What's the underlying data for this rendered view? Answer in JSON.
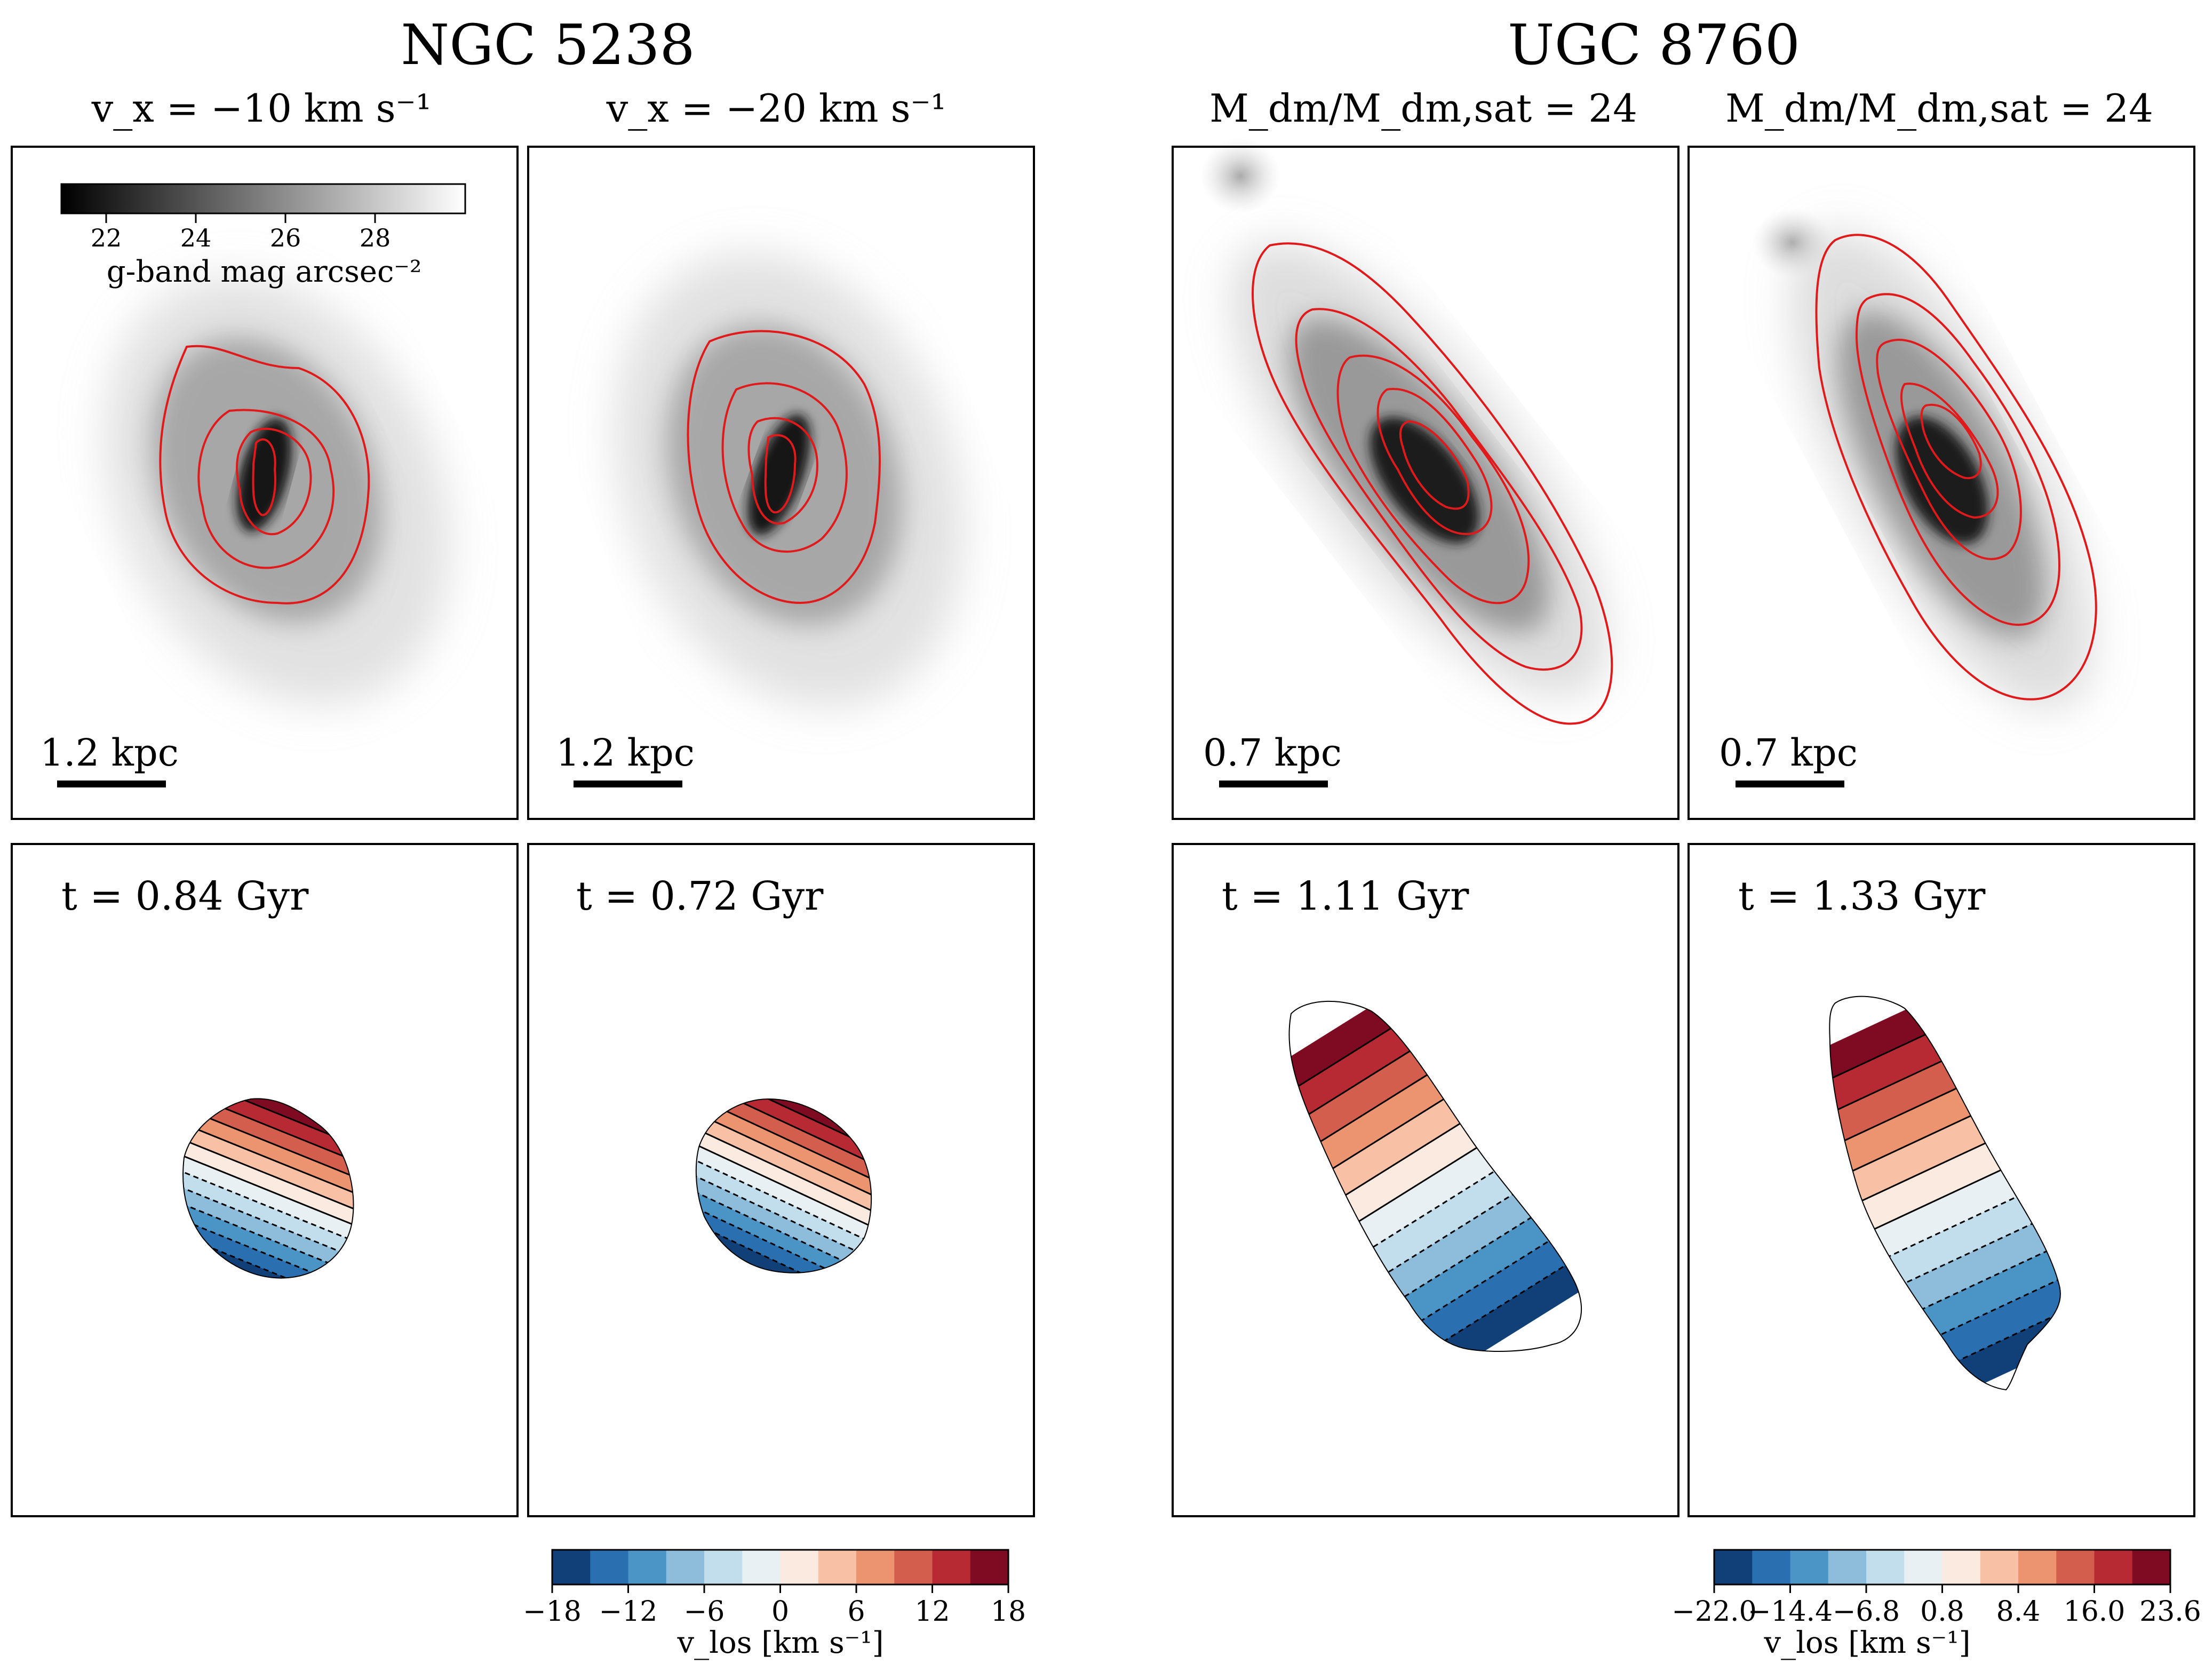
{
  "figure": {
    "groups": [
      {
        "title": "NGC 5238",
        "columns": [
          {
            "title": "v_x = −10 km s⁻¹",
            "scale_bar": "1.2 kpc",
            "time": "t = 0.84 Gyr"
          },
          {
            "title": "v_x = −20 km s⁻¹",
            "scale_bar": "1.2 kpc",
            "time": "t = 0.72 Gyr"
          }
        ],
        "vlos_colorbar": {
          "label": "v_los [km s⁻¹]",
          "min": -18,
          "max": 18,
          "ticks": [
            "−18",
            "−12",
            "−6",
            "0",
            "6",
            "12",
            "18"
          ],
          "levels": 12
        }
      },
      {
        "title": "UGC 8760",
        "columns": [
          {
            "title": "M_dm/M_dm,sat = 24",
            "scale_bar": "0.7 kpc",
            "time": "t = 1.11 Gyr"
          },
          {
            "title": "M_dm/M_dm,sat = 24",
            "scale_bar": "0.7 kpc",
            "time": "t = 1.33 Gyr"
          }
        ],
        "vlos_colorbar": {
          "label": "v_los [km s⁻¹]",
          "min": -22.0,
          "max": 23.6,
          "ticks": [
            "−22.0",
            "−14.4",
            "−6.8",
            "0.8",
            "8.4",
            "16.0",
            "23.6"
          ],
          "levels": 12
        }
      }
    ],
    "gband_colorbar": {
      "label": "g-band mag arcsec⁻²",
      "ticks": [
        "22",
        "24",
        "26",
        "28"
      ],
      "range": [
        21,
        30
      ]
    }
  },
  "chart_data": [
    {
      "type": "heatmap",
      "title": "NGC 5238, v_x = −10 km s⁻¹",
      "quantity": "g-band surface brightness (mag arcsec⁻²) with red isophote contours",
      "scale_bar": "1.2 kpc"
    },
    {
      "type": "heatmap",
      "title": "NGC 5238, v_x = −20 km s⁻¹",
      "quantity": "g-band surface brightness (mag arcsec⁻²) with red isophote contours",
      "scale_bar": "1.2 kpc"
    },
    {
      "type": "heatmap",
      "title": "UGC 8760, M_dm/M_dm,sat = 24",
      "quantity": "g-band surface brightness (mag arcsec⁻²) with red isophote contours",
      "scale_bar": "0.7 kpc"
    },
    {
      "type": "heatmap",
      "title": "UGC 8760, M_dm/M_dm,sat = 24",
      "quantity": "g-band surface brightness (mag arcsec⁻²) with red isophote contours",
      "scale_bar": "0.7 kpc"
    },
    {
      "type": "heatmap",
      "title": "NGC 5238 velocity field, t = 0.84 Gyr",
      "quantity": "v_los (km s⁻¹)",
      "range": [
        -18,
        18
      ]
    },
    {
      "type": "heatmap",
      "title": "NGC 5238 velocity field, t = 0.72 Gyr",
      "quantity": "v_los (km s⁻¹)",
      "range": [
        -18,
        18
      ]
    },
    {
      "type": "heatmap",
      "title": "UGC 8760 velocity field, t = 1.11 Gyr",
      "quantity": "v_los (km s⁻¹)",
      "range": [
        -22.0,
        23.6
      ]
    },
    {
      "type": "heatmap",
      "title": "UGC 8760 velocity field, t = 1.33 Gyr",
      "quantity": "v_los (km s⁻¹)",
      "range": [
        -22.0,
        23.6
      ]
    }
  ],
  "colors": {
    "contour": "#e0191b",
    "vlos_palette": [
      "#113f78",
      "#2a6fb0",
      "#4a94c6",
      "#8ebcdb",
      "#c2ddec",
      "#e9f0f4",
      "#faeae0",
      "#f8c1a5",
      "#ec9470",
      "#d45e4d",
      "#b72a33",
      "#7e0b21"
    ]
  }
}
